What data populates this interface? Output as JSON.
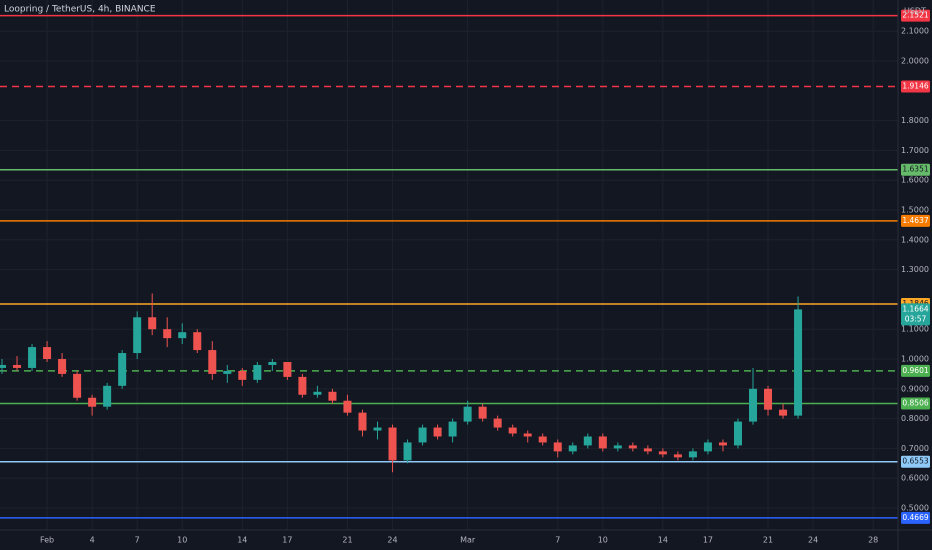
{
  "chart_data": {
    "type": "candlestick",
    "title": "Loopring / TetherUS, 4h, BINANCE",
    "currency": "USDT",
    "categories": [
      null,
      null,
      null,
      "Feb",
      null,
      null,
      "4",
      null,
      null,
      "7",
      null,
      null,
      "10",
      null,
      null,
      null,
      "14",
      null,
      null,
      "17",
      null,
      null,
      null,
      "21",
      null,
      null,
      "24",
      null,
      null,
      null,
      null,
      "Mar",
      null,
      null,
      null,
      null,
      null,
      "7",
      null,
      null,
      "10",
      null,
      null,
      null,
      "14",
      null,
      null,
      "17",
      null,
      null,
      null,
      "21",
      null,
      null,
      "24",
      null,
      null,
      null,
      "28"
    ],
    "open": [
      0.97,
      0.98,
      0.97,
      1.04,
      1.0,
      0.95,
      0.87,
      0.84,
      0.91,
      1.02,
      1.14,
      1.1,
      1.07,
      1.09,
      1.03,
      0.95,
      0.96,
      0.93,
      0.98,
      0.99,
      0.94,
      0.88,
      0.89,
      0.86,
      0.82,
      0.76,
      0.77,
      0.66,
      0.72,
      0.77,
      0.74,
      0.79,
      0.84,
      0.8,
      0.77,
      0.75,
      0.74,
      0.72,
      0.69,
      0.71,
      0.74,
      0.7,
      0.71,
      0.7,
      0.69,
      0.68,
      0.67,
      0.69,
      0.72,
      0.71,
      0.79,
      0.9,
      0.83,
      0.81,
      null,
      null,
      null,
      null,
      null
    ],
    "high": [
      1.0,
      1.01,
      1.05,
      1.06,
      1.02,
      0.96,
      0.88,
      0.92,
      1.03,
      1.16,
      1.22,
      1.14,
      1.12,
      1.1,
      1.06,
      0.98,
      0.97,
      0.99,
      1.0,
      0.99,
      0.95,
      0.91,
      0.9,
      0.88,
      0.83,
      0.79,
      0.78,
      0.73,
      0.78,
      0.78,
      0.8,
      0.86,
      0.85,
      0.81,
      0.78,
      0.76,
      0.75,
      0.73,
      0.72,
      0.75,
      0.75,
      0.72,
      0.72,
      0.71,
      0.7,
      0.69,
      0.7,
      0.73,
      0.73,
      0.8,
      0.97,
      0.91,
      0.85,
      1.21,
      null,
      null,
      null,
      null,
      null
    ],
    "low": [
      0.95,
      0.96,
      0.96,
      0.99,
      0.94,
      0.86,
      0.81,
      0.83,
      0.9,
      1.0,
      1.08,
      1.04,
      1.05,
      1.02,
      0.93,
      0.92,
      0.91,
      0.92,
      0.96,
      0.93,
      0.87,
      0.87,
      0.85,
      0.81,
      0.74,
      0.73,
      0.62,
      0.65,
      0.71,
      0.73,
      0.72,
      0.78,
      0.79,
      0.76,
      0.74,
      0.72,
      0.71,
      0.67,
      0.68,
      0.7,
      0.69,
      0.69,
      0.69,
      0.68,
      0.67,
      0.66,
      0.66,
      0.68,
      0.69,
      0.7,
      0.78,
      0.81,
      0.8,
      0.8,
      null,
      null,
      null,
      null,
      null
    ],
    "close": [
      0.98,
      0.97,
      1.04,
      1.0,
      0.95,
      0.87,
      0.84,
      0.91,
      1.02,
      1.14,
      1.1,
      1.07,
      1.09,
      1.03,
      0.95,
      0.96,
      0.93,
      0.98,
      0.99,
      0.94,
      0.88,
      0.89,
      0.86,
      0.82,
      0.76,
      0.77,
      0.66,
      0.72,
      0.77,
      0.74,
      0.79,
      0.84,
      0.8,
      0.77,
      0.75,
      0.74,
      0.72,
      0.69,
      0.71,
      0.74,
      0.7,
      0.71,
      0.7,
      0.69,
      0.68,
      0.67,
      0.69,
      0.72,
      0.71,
      0.79,
      0.9,
      0.83,
      0.81,
      1.1664,
      null,
      null,
      null,
      null,
      null
    ],
    "up_color": "#26a69a",
    "down_color": "#ef5350",
    "levels": [
      {
        "value": 2.1521,
        "color": "#f23645",
        "dashed": false
      },
      {
        "value": 1.9146,
        "color": "#f23645",
        "dashed": true
      },
      {
        "value": 1.6351,
        "color": "#66bb6a",
        "dashed": false
      },
      {
        "value": 1.4637,
        "color": "#f57c00",
        "dashed": false
      },
      {
        "value": 1.1846,
        "color": "#ffa726",
        "dashed": false
      },
      {
        "value": 0.9601,
        "color": "#4caf50",
        "dashed": true
      },
      {
        "value": 0.8506,
        "color": "#4caf50",
        "dashed": false
      },
      {
        "value": 0.6553,
        "color": "#90caf9",
        "dashed": false
      },
      {
        "value": 0.4669,
        "color": "#2962ff",
        "dashed": false
      }
    ],
    "last_price": {
      "value": 1.1664,
      "countdown": "03:57",
      "color": "#26a69a"
    },
    "ylim": [
      0.4262,
      2.2047
    ],
    "yticks": [
      {
        "value": 0.5,
        "label": "0.5000"
      },
      {
        "value": 0.6,
        "label": "0.6000"
      },
      {
        "value": 0.7,
        "label": "0.7000"
      },
      {
        "value": 0.8,
        "label": "0.8000"
      },
      {
        "value": 0.9,
        "label": "0.9000"
      },
      {
        "value": 1.0,
        "label": "1.0000"
      },
      {
        "value": 1.1,
        "label": "1.1000"
      },
      {
        "value": 1.3,
        "label": "1.3000"
      },
      {
        "value": 1.4,
        "label": "1.4000"
      },
      {
        "value": 1.5,
        "label": "1.5000"
      },
      {
        "value": 1.6,
        "label": "1.6000"
      },
      {
        "value": 1.7,
        "label": "1.7000"
      },
      {
        "value": 1.8,
        "label": "1.8000"
      },
      {
        "value": 2.0,
        "label": "2.0000"
      },
      {
        "value": 2.1,
        "label": "2.1000"
      }
    ],
    "grid": true
  }
}
